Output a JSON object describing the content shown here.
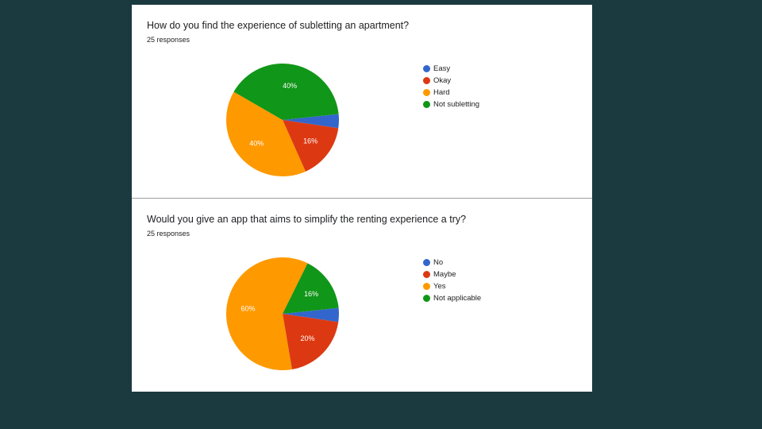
{
  "chart_data": [
    {
      "type": "pie",
      "title": "How do you find the experience of subletting an apartment?",
      "subtitle": "25 responses",
      "categories": [
        "Easy",
        "Okay",
        "Hard",
        "Not subletting"
      ],
      "values": [
        1,
        4,
        10,
        10
      ],
      "percent_labels": [
        "",
        "16%",
        "40%",
        "40%"
      ],
      "colors": [
        "#3366cc",
        "#dc3912",
        "#ff9900",
        "#109618"
      ],
      "legend": "right"
    },
    {
      "type": "pie",
      "title": "Would you give an app that aims to simplify the renting experience a try?",
      "subtitle": "25 responses",
      "categories": [
        "No",
        "Maybe",
        "Yes",
        "Not applicable"
      ],
      "values": [
        1,
        5,
        15,
        4
      ],
      "percent_labels": [
        "",
        "20%",
        "60%",
        "16%"
      ],
      "colors": [
        "#3366cc",
        "#dc3912",
        "#ff9900",
        "#109618"
      ],
      "legend": "right"
    }
  ]
}
